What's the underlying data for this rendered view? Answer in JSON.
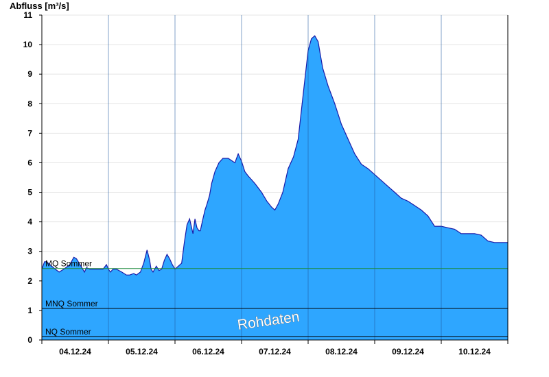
{
  "chart_data": {
    "type": "area",
    "ylabel": "Abfluss [m³/s]",
    "ylim": [
      0,
      11
    ],
    "yticks": [
      0,
      1,
      2,
      3,
      4,
      5,
      6,
      7,
      8,
      9,
      10,
      11
    ],
    "xlim": [
      0,
      7
    ],
    "xticks": [
      {
        "label": "04.12.24",
        "x": 0.5
      },
      {
        "label": "05.12.24",
        "x": 1.5
      },
      {
        "label": "06.12.24",
        "x": 2.5
      },
      {
        "label": "07.12.24",
        "x": 3.5
      },
      {
        "label": "08.12.24",
        "x": 4.5
      },
      {
        "label": "09.12.24",
        "x": 5.5
      },
      {
        "label": "10.12.24",
        "x": 6.5
      }
    ],
    "day_boundaries": [
      1,
      2,
      3,
      4,
      5,
      6
    ],
    "grid": true,
    "colors": {
      "fill": "#2ea6ff",
      "line": "#1a1aa8",
      "mq_line": "#1a8a3a",
      "ref_line": "#000000"
    },
    "reference_lines": [
      {
        "label": "MQ Sommer",
        "value": 2.42,
        "color": "#1a8a3a"
      },
      {
        "label": "MNQ Sommer",
        "value": 1.07,
        "color": "#000000"
      },
      {
        "label": "NQ Sommer",
        "value": 0.12,
        "color": "#000000"
      }
    ],
    "annotation": "Rohdaten",
    "series": [
      {
        "name": "",
        "x": [
          0,
          0.04,
          0.07,
          0.2,
          0.26,
          0.33,
          0.42,
          0.48,
          0.52,
          0.6,
          0.64,
          0.67,
          0.72,
          0.8,
          0.92,
          0.97,
          1.0,
          1.03,
          1.07,
          1.12,
          1.2,
          1.27,
          1.32,
          1.38,
          1.42,
          1.48,
          1.53,
          1.58,
          1.62,
          1.64,
          1.67,
          1.72,
          1.76,
          1.8,
          1.84,
          1.88,
          1.92,
          1.96,
          2.0,
          2.05,
          2.1,
          2.14,
          2.18,
          2.22,
          2.27,
          2.3,
          2.33,
          2.36,
          2.38,
          2.42,
          2.45,
          2.48,
          2.52,
          2.55,
          2.6,
          2.66,
          2.72,
          2.8,
          2.9,
          2.95,
          3.0,
          3.05,
          3.1,
          3.2,
          3.3,
          3.38,
          3.45,
          3.5,
          3.55,
          3.62,
          3.7,
          3.78,
          3.85,
          3.9,
          3.96,
          4.0,
          4.05,
          4.1,
          4.15,
          4.18,
          4.22,
          4.3,
          4.4,
          4.5,
          4.6,
          4.7,
          4.8,
          4.9,
          5.0,
          5.1,
          5.2,
          5.3,
          5.4,
          5.5,
          5.6,
          5.7,
          5.8,
          5.9,
          6.0,
          6.1,
          6.2,
          6.3,
          6.4,
          6.5,
          6.6,
          6.65,
          6.7,
          6.8,
          6.9,
          7.0
        ],
        "values": [
          2.4,
          2.65,
          2.65,
          2.4,
          2.3,
          2.4,
          2.55,
          2.8,
          2.75,
          2.45,
          2.3,
          2.45,
          2.4,
          2.4,
          2.4,
          2.55,
          2.4,
          2.3,
          2.4,
          2.4,
          2.3,
          2.2,
          2.2,
          2.25,
          2.2,
          2.3,
          2.6,
          3.05,
          2.7,
          2.4,
          2.3,
          2.5,
          2.35,
          2.4,
          2.7,
          2.9,
          2.75,
          2.55,
          2.4,
          2.5,
          2.6,
          3.3,
          3.9,
          4.1,
          3.6,
          4.1,
          3.8,
          3.7,
          3.7,
          4.1,
          4.4,
          4.6,
          4.9,
          5.3,
          5.7,
          6.0,
          6.15,
          6.15,
          6.0,
          6.3,
          6.05,
          5.7,
          5.55,
          5.3,
          5.0,
          4.7,
          4.5,
          4.4,
          4.6,
          5.0,
          5.8,
          6.2,
          6.8,
          7.8,
          9.0,
          9.8,
          10.2,
          10.3,
          10.1,
          9.7,
          9.2,
          8.6,
          8.0,
          7.3,
          6.8,
          6.3,
          5.95,
          5.8,
          5.6,
          5.4,
          5.2,
          5.0,
          4.8,
          4.7,
          4.55,
          4.4,
          4.2,
          3.85,
          3.85,
          3.8,
          3.75,
          3.6,
          3.6,
          3.6,
          3.55,
          3.45,
          3.35,
          3.3,
          3.3,
          3.3
        ]
      }
    ]
  }
}
